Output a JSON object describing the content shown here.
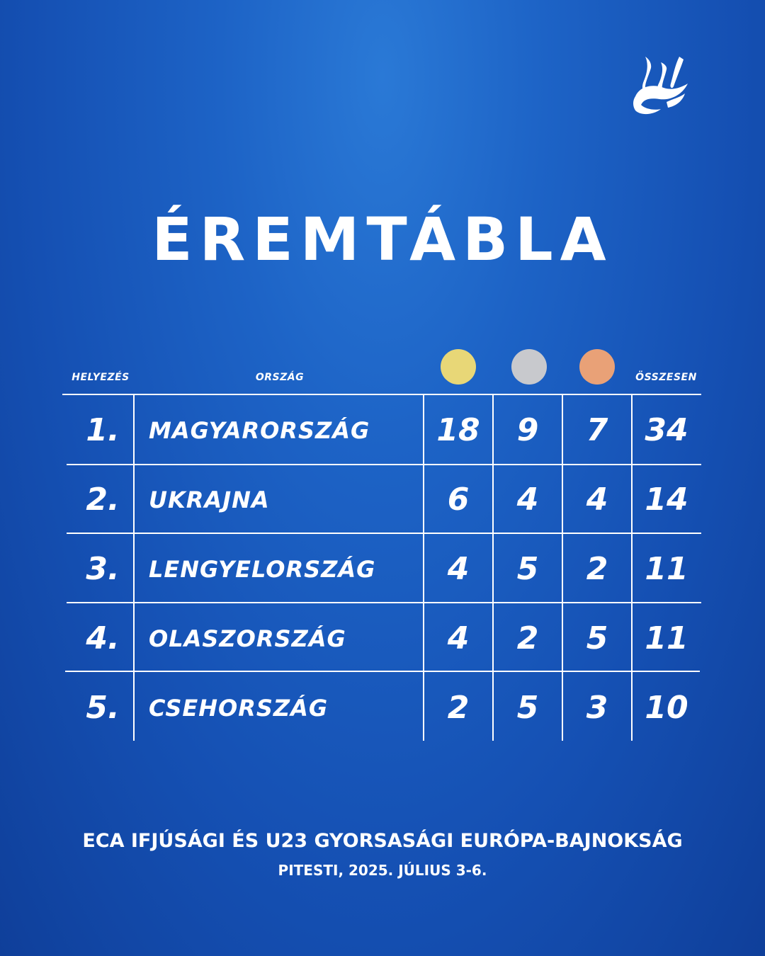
{
  "title": "ÉREMTÁBLA",
  "headers": {
    "rank": "HELYEZÉS",
    "country": "ORSZÁG",
    "total": "ÖSSZESEN"
  },
  "medal_colors": {
    "gold": "#e8d777",
    "silver": "#c8c9cd",
    "bronze": "#e9a177"
  },
  "background_color": "#1d5fc3",
  "rows": [
    {
      "rank": "1.",
      "country": "MAGYARORSZÁG",
      "gold": "18",
      "silver": "9",
      "bronze": "7",
      "total": "34"
    },
    {
      "rank": "2.",
      "country": "UKRAJNA",
      "gold": "6",
      "silver": "4",
      "bronze": "4",
      "total": "14"
    },
    {
      "rank": "3.",
      "country": "LENGYELORSZÁG",
      "gold": "4",
      "silver": "5",
      "bronze": "2",
      "total": "11"
    },
    {
      "rank": "4.",
      "country": "OLASZORSZÁG",
      "gold": "4",
      "silver": "2",
      "bronze": "5",
      "total": "11"
    },
    {
      "rank": "5.",
      "country": "CSEHORSZÁG",
      "gold": "2",
      "silver": "5",
      "bronze": "3",
      "total": "10"
    }
  ],
  "footer": {
    "event": "ECA IFJÚSÁGI ÉS U23 GYORSASÁGI EURÓPA-BAJNOKSÁG",
    "location_date": "PITESTI, 2025. JÚLIUS 3-6."
  }
}
